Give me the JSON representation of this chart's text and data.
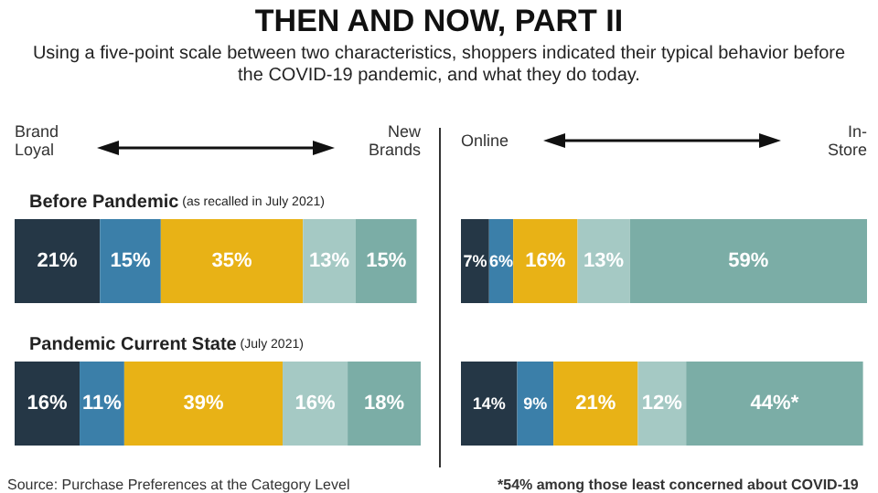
{
  "chart_data": [
    {
      "type": "bar",
      "title": "THEN AND NOW, PART II",
      "subtitle": "Using a five-point scale between two characteristics, shoppers indicated their typical behavior before the COVID-19 pandemic, and what they do today.",
      "orientation": "horizontal",
      "stacked": true,
      "tick_labels": "y",
      "annotations": [
        "Brand Loyal",
        "New Brands",
        "Source: Purchase Preferences at the Category Level"
      ],
      "categories": [
        "Before Pandemic (as recalled in July 2021)",
        "Pandemic Current State (July 2021)"
      ],
      "series": [
        {
          "color": "#253746",
          "values": [
            21,
            16
          ],
          "value_labels": [
            "21%",
            "16%"
          ]
        },
        {
          "color": "#3b7fa9",
          "values": [
            15,
            11
          ],
          "value_labels": [
            "15%",
            "11%"
          ]
        },
        {
          "color": "#e8b216",
          "values": [
            35,
            39
          ],
          "value_labels": [
            "35%",
            "39%"
          ]
        },
        {
          "color": "#a5c9c4",
          "values": [
            13,
            16
          ],
          "value_labels": [
            "13%",
            "16%"
          ]
        },
        {
          "color": "#7badA6",
          "values": [
            15,
            18
          ],
          "value_labels": [
            "15%",
            "18%"
          ]
        }
      ]
    },
    {
      "type": "bar",
      "orientation": "horizontal",
      "stacked": true,
      "tick_labels": false,
      "annotations": [
        "Online",
        "In-Store",
        "*54% among those least concerned about COVID-19"
      ],
      "categories": [
        null,
        null
      ],
      "series": [
        {
          "color": "#253746",
          "values": [
            7,
            14
          ],
          "value_labels": [
            "7%",
            "14%"
          ]
        },
        {
          "color": "#3b7fa9",
          "values": [
            6,
            9
          ],
          "value_labels": [
            "6%",
            "9%"
          ]
        },
        {
          "color": "#e8b216",
          "values": [
            16,
            21
          ],
          "value_labels": [
            "16%",
            "21%"
          ]
        },
        {
          "color": "#a5c9c4",
          "values": [
            13,
            12
          ],
          "value_labels": [
            "13%",
            "12%"
          ]
        },
        {
          "color": "#7bada6",
          "values": [
            59,
            44
          ],
          "value_labels": [
            "59%",
            "44%*"
          ]
        }
      ]
    }
  ]
}
